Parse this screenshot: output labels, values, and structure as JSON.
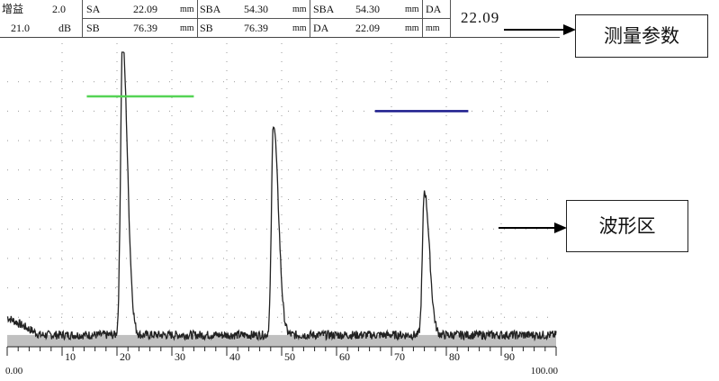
{
  "params": {
    "gain_label": "增益",
    "gain_step": "2.0",
    "gain_value": "21.0",
    "gain_unit": "dB",
    "unit": "mm",
    "row1": [
      {
        "label": "SA",
        "value": "22.09",
        "unit": "mm"
      },
      {
        "label": "SBA",
        "value": "54.30",
        "unit": "mm"
      },
      {
        "label": "SBA",
        "value": "54.30",
        "unit": "mm"
      },
      {
        "label": "DA",
        "value": "",
        "unit": ""
      }
    ],
    "row2": [
      {
        "label": "SB",
        "value": "76.39",
        "unit": "mm"
      },
      {
        "label": "SB",
        "value": "76.39",
        "unit": "mm"
      },
      {
        "label": "DA",
        "value": "22.09",
        "unit": "mm"
      },
      {
        "label": "",
        "value": "",
        "unit": "mm"
      }
    ],
    "big_readout": "22.09"
  },
  "waveform": {
    "x_ticks": [
      "10",
      "20",
      "30",
      "40",
      "50",
      "60",
      "70",
      "80",
      "90"
    ],
    "x_start_label": "0.00",
    "x_end_label": "100.00",
    "x_range": [
      0,
      100
    ],
    "y_range": [
      0,
      100
    ],
    "peaks": [
      {
        "x": 21,
        "height": 100
      },
      {
        "x": 48.5,
        "height": 72
      },
      {
        "x": 76,
        "height": 49
      }
    ],
    "baseline": 4,
    "gates": [
      {
        "name": "gate-a",
        "x_start": 14.5,
        "x_end": 34,
        "level": 85,
        "color": "#55d455"
      },
      {
        "name": "gate-b",
        "x_start": 67,
        "x_end": 84,
        "level": 80,
        "color": "#1a1a8c"
      }
    ],
    "colors": {
      "trace": "#222222",
      "baseline_fill": "#c0c0c0",
      "grid": "#999999"
    }
  },
  "callouts": {
    "params_label": "测量参数",
    "wave_label": "波形区"
  }
}
